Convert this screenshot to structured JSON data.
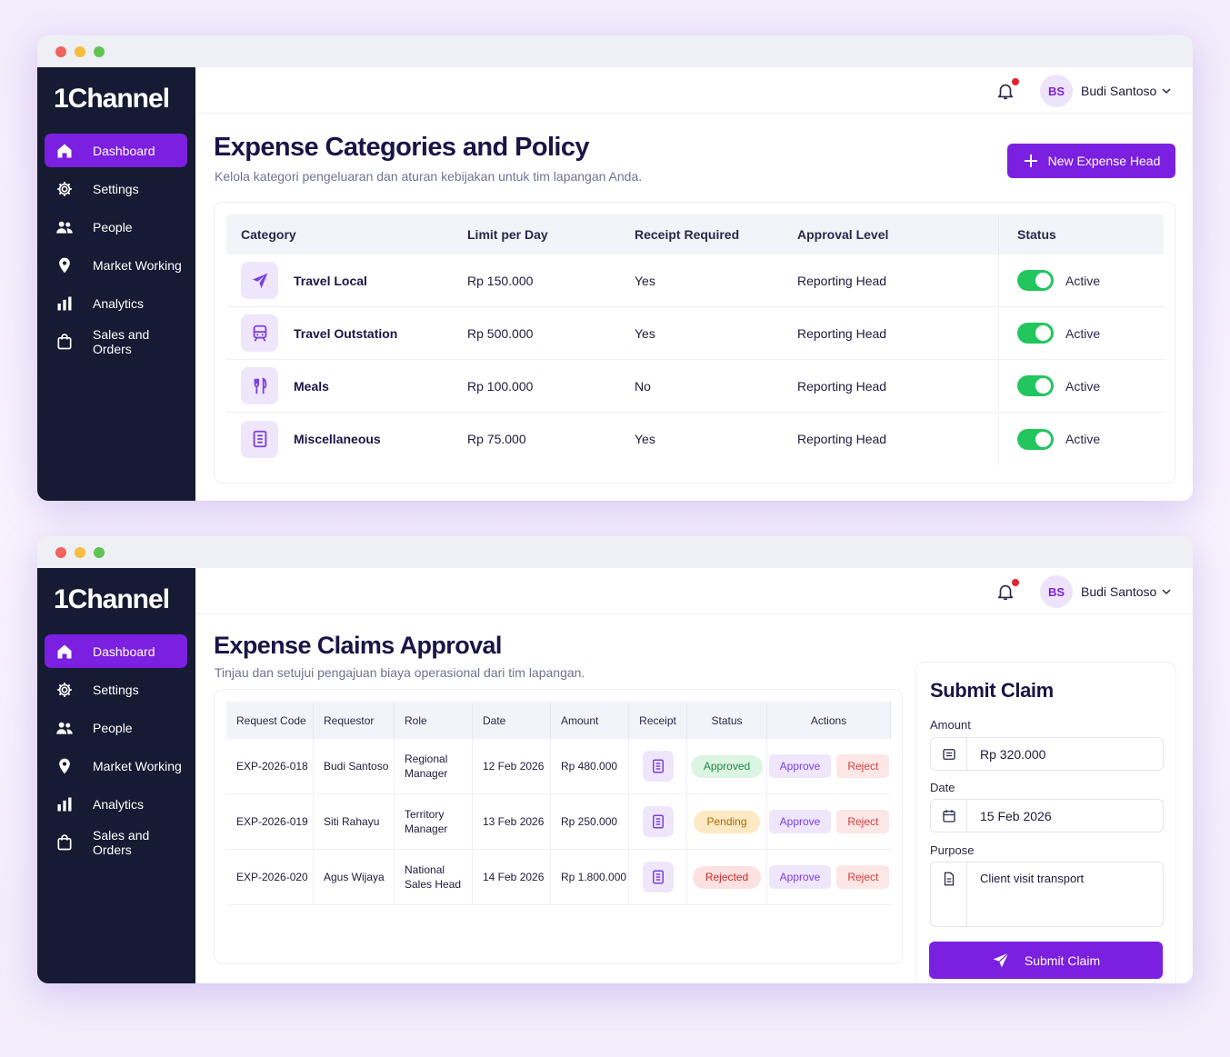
{
  "brand": "1Channel",
  "user": {
    "initials": "BS",
    "name": "Budi Santoso"
  },
  "nav": [
    {
      "label": "Dashboard",
      "icon": "home-icon"
    },
    {
      "label": "Settings",
      "icon": "gear-icon"
    },
    {
      "label": "People",
      "icon": "people-icon"
    },
    {
      "label": "Market Working",
      "icon": "map-pin-icon"
    },
    {
      "label": "Analytics",
      "icon": "bar-chart-icon"
    },
    {
      "label": "Sales and Orders",
      "icon": "shopping-bag-icon"
    }
  ],
  "policy": {
    "title": "Expense Categories and Policy",
    "subtitle": "Kelola kategori pengeluaran dan aturan kebijakan untuk tim lapangan Anda.",
    "new_button": "New Expense Head",
    "columns": [
      "Category",
      "Limit per Day",
      "Receipt Required",
      "Approval Level",
      "Status"
    ],
    "rows": [
      {
        "category": "Travel Local",
        "limit": "Rp 150.000",
        "receipt": "Yes",
        "approval": "Reporting Head",
        "status": "Active",
        "icon": "airplane-icon"
      },
      {
        "category": "Travel Outstation",
        "limit": "Rp 500.000",
        "receipt": "Yes",
        "approval": "Reporting Head",
        "status": "Active",
        "icon": "train-icon"
      },
      {
        "category": "Meals",
        "limit": "Rp 100.000",
        "receipt": "No",
        "approval": "Reporting Head",
        "status": "Active",
        "icon": "utensils-icon"
      },
      {
        "category": "Miscellaneous",
        "limit": "Rp 75.000",
        "receipt": "Yes",
        "approval": "Reporting Head",
        "status": "Active",
        "icon": "document-icon"
      }
    ]
  },
  "claims": {
    "title": "Expense Claims Approval",
    "subtitle": "Tinjau dan setujui pengajuan biaya operasional dari tim lapangan.",
    "columns": [
      "Request Code",
      "Requestor",
      "Role",
      "Date",
      "Amount",
      "Receipt",
      "Status",
      "Actions"
    ],
    "approve_label": "Approve",
    "reject_label": "Reject",
    "rows": [
      {
        "code": "EXP-2026-018",
        "requestor": "Budi Santoso",
        "role": "Regional Manager",
        "date": "12 Feb 2026",
        "amount": "Rp 480.000",
        "status": "Approved"
      },
      {
        "code": "EXP-2026-019",
        "requestor": "Siti Rahayu",
        "role": "Territory Manager",
        "date": "13 Feb 2026",
        "amount": "Rp 250.000",
        "status": "Pending"
      },
      {
        "code": "EXP-2026-020",
        "requestor": "Agus Wijaya",
        "role": "National Sales Head",
        "date": "14 Feb 2026",
        "amount": "Rp 1.800.000",
        "status": "Rejected"
      }
    ]
  },
  "submit": {
    "title": "Submit Claim",
    "amount_label": "Amount",
    "amount_value": "Rp 320.000",
    "date_label": "Date",
    "date_value": "15 Feb 2026",
    "purpose_label": "Purpose",
    "purpose_value": "Client visit transport",
    "button": "Submit Claim"
  },
  "colors": {
    "accent": "#7b1fe0",
    "sidebar": "#161b33",
    "toggle_on": "#22c55e"
  }
}
